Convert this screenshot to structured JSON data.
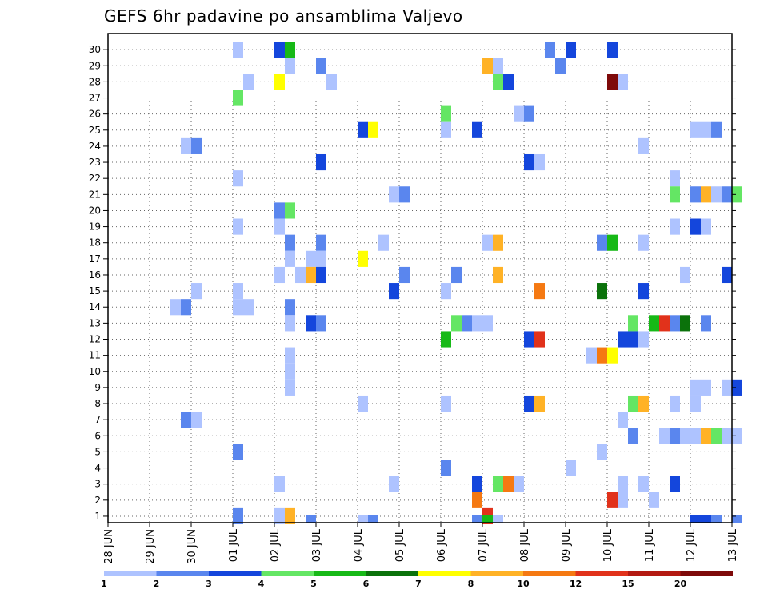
{
  "chart_data": {
    "type": "heatmap",
    "title": "GEFS 6hr padavine po ansamblima Valjevo",
    "x_labels": [
      "28 JUN",
      "29 JUN",
      "30 JUN",
      "01 JUL",
      "02 JUL",
      "03 JUL",
      "04 JUL",
      "05 JUL",
      "06 JUL",
      "07 JUL",
      "08 JUL",
      "09 JUL",
      "10 JUL",
      "11 JUL",
      "12 JUL",
      "13 JUL"
    ],
    "y_labels": [
      "1",
      "2",
      "3",
      "4",
      "5",
      "6",
      "7",
      "8",
      "9",
      "10",
      "11",
      "12",
      "13",
      "14",
      "15",
      "16",
      "17",
      "18",
      "19",
      "20",
      "21",
      "22",
      "23",
      "24",
      "25",
      "26",
      "27",
      "28",
      "29",
      "30"
    ],
    "xlabel": "",
    "ylabel": "",
    "grid": true,
    "step": "6hr",
    "colorbar": {
      "labels": [
        "1",
        "2",
        "3",
        "4",
        "5",
        "6",
        "7",
        "8",
        "10",
        "12",
        "15",
        "20"
      ],
      "colors": [
        "#aec3ff",
        "#5a86ee",
        "#1446dc",
        "#64e664",
        "#17b917",
        "#0b720b",
        "#ffff00",
        "#ffb226",
        "#f57912",
        "#e1321b",
        "#b41a12",
        "#7e0a0a"
      ]
    },
    "cells": [
      [
        3.0,
        30,
        0
      ],
      [
        4.0,
        30,
        2
      ],
      [
        4.25,
        30,
        4
      ],
      [
        10.5,
        30,
        1
      ],
      [
        11.0,
        30,
        2
      ],
      [
        12.0,
        30,
        2
      ],
      [
        4.25,
        29,
        0
      ],
      [
        5.0,
        29,
        1
      ],
      [
        9.0,
        29,
        7
      ],
      [
        9.25,
        29,
        0
      ],
      [
        10.75,
        29,
        1
      ],
      [
        3.25,
        28,
        0
      ],
      [
        4.0,
        28,
        6
      ],
      [
        5.25,
        28,
        0
      ],
      [
        9.25,
        28,
        3
      ],
      [
        9.5,
        28,
        2
      ],
      [
        12.0,
        28,
        11
      ],
      [
        12.25,
        28,
        0
      ],
      [
        3.0,
        27,
        3
      ],
      [
        8.0,
        26,
        3
      ],
      [
        9.75,
        26,
        0
      ],
      [
        10.0,
        26,
        1
      ],
      [
        6.0,
        25,
        2
      ],
      [
        6.25,
        25,
        6
      ],
      [
        8.0,
        25,
        0
      ],
      [
        8.75,
        25,
        2
      ],
      [
        14.0,
        25,
        0
      ],
      [
        14.25,
        25,
        0
      ],
      [
        14.5,
        25,
        1
      ],
      [
        1.75,
        24,
        0
      ],
      [
        2.0,
        24,
        1
      ],
      [
        12.75,
        24,
        0
      ],
      [
        5.0,
        23,
        2
      ],
      [
        10.0,
        23,
        2
      ],
      [
        10.25,
        23,
        0
      ],
      [
        3.0,
        22,
        0
      ],
      [
        13.5,
        22,
        0
      ],
      [
        6.75,
        21,
        0
      ],
      [
        7.0,
        21,
        1
      ],
      [
        13.5,
        21,
        3
      ],
      [
        14.0,
        21,
        1
      ],
      [
        14.25,
        21,
        7
      ],
      [
        14.5,
        21,
        0
      ],
      [
        14.75,
        21,
        1
      ],
      [
        15.0,
        21,
        3
      ],
      [
        4.0,
        20,
        1
      ],
      [
        4.25,
        20,
        3
      ],
      [
        3.0,
        19,
        0
      ],
      [
        4.0,
        19,
        0
      ],
      [
        13.5,
        19,
        0
      ],
      [
        14.0,
        19,
        2
      ],
      [
        14.25,
        19,
        0
      ],
      [
        4.25,
        18,
        1
      ],
      [
        5.0,
        18,
        1
      ],
      [
        6.5,
        18,
        0
      ],
      [
        9.0,
        18,
        0
      ],
      [
        9.25,
        18,
        7
      ],
      [
        11.75,
        18,
        1
      ],
      [
        12.0,
        18,
        4
      ],
      [
        12.75,
        18,
        0
      ],
      [
        4.25,
        17,
        0
      ],
      [
        4.75,
        17,
        0
      ],
      [
        5.0,
        17,
        0
      ],
      [
        6.0,
        17,
        6
      ],
      [
        4.0,
        16,
        0
      ],
      [
        4.5,
        16,
        0
      ],
      [
        4.75,
        16,
        7
      ],
      [
        5.0,
        16,
        2
      ],
      [
        7.0,
        16,
        1
      ],
      [
        8.25,
        16,
        1
      ],
      [
        9.25,
        16,
        7
      ],
      [
        13.75,
        16,
        0
      ],
      [
        14.75,
        16,
        2
      ],
      [
        2.0,
        15,
        0
      ],
      [
        3.0,
        15,
        0
      ],
      [
        6.75,
        15,
        2
      ],
      [
        8.0,
        15,
        0
      ],
      [
        10.25,
        15,
        8
      ],
      [
        11.75,
        15,
        5
      ],
      [
        12.75,
        15,
        2
      ],
      [
        1.5,
        14,
        0
      ],
      [
        1.75,
        14,
        1
      ],
      [
        3.0,
        14,
        0
      ],
      [
        3.25,
        14,
        0
      ],
      [
        4.25,
        14,
        1
      ],
      [
        4.25,
        13,
        0
      ],
      [
        4.75,
        13,
        2
      ],
      [
        5.0,
        13,
        1
      ],
      [
        8.25,
        13,
        3
      ],
      [
        8.5,
        13,
        1
      ],
      [
        8.75,
        13,
        0
      ],
      [
        9.0,
        13,
        0
      ],
      [
        12.5,
        13,
        3
      ],
      [
        13.0,
        13,
        4
      ],
      [
        13.25,
        13,
        9
      ],
      [
        13.5,
        13,
        1
      ],
      [
        13.75,
        13,
        5
      ],
      [
        14.25,
        13,
        1
      ],
      [
        8.0,
        12,
        4
      ],
      [
        10.0,
        12,
        2
      ],
      [
        10.25,
        12,
        9
      ],
      [
        12.25,
        12,
        2
      ],
      [
        12.5,
        12,
        2
      ],
      [
        12.75,
        12,
        0
      ],
      [
        4.25,
        11,
        0
      ],
      [
        11.5,
        11,
        0
      ],
      [
        11.75,
        11,
        8
      ],
      [
        12.0,
        11,
        6
      ],
      [
        4.25,
        10,
        0
      ],
      [
        4.25,
        9,
        0
      ],
      [
        14.0,
        9,
        0
      ],
      [
        14.25,
        9,
        0
      ],
      [
        14.75,
        9,
        0
      ],
      [
        15.0,
        9,
        2
      ],
      [
        6.0,
        8,
        0
      ],
      [
        8.0,
        8,
        0
      ],
      [
        10.0,
        8,
        2
      ],
      [
        10.25,
        8,
        7
      ],
      [
        12.5,
        8,
        3
      ],
      [
        12.75,
        8,
        7
      ],
      [
        13.5,
        8,
        0
      ],
      [
        14.0,
        8,
        0
      ],
      [
        1.75,
        7,
        1
      ],
      [
        2.0,
        7,
        0
      ],
      [
        12.25,
        7,
        0
      ],
      [
        12.5,
        6,
        1
      ],
      [
        13.25,
        6,
        0
      ],
      [
        13.5,
        6,
        1
      ],
      [
        13.75,
        6,
        0
      ],
      [
        14.0,
        6,
        0
      ],
      [
        14.25,
        6,
        7
      ],
      [
        14.5,
        6,
        3
      ],
      [
        14.75,
        6,
        0
      ],
      [
        15.0,
        6,
        0
      ],
      [
        3.0,
        5,
        1
      ],
      [
        11.75,
        5,
        0
      ],
      [
        8.0,
        4,
        1
      ],
      [
        11.0,
        4,
        0
      ],
      [
        4.0,
        3,
        0
      ],
      [
        6.75,
        3,
        0
      ],
      [
        8.75,
        3,
        2
      ],
      [
        9.25,
        3,
        3
      ],
      [
        9.5,
        3,
        8
      ],
      [
        9.75,
        3,
        0
      ],
      [
        12.25,
        3,
        0
      ],
      [
        12.75,
        3,
        0
      ],
      [
        13.5,
        3,
        2
      ],
      [
        8.75,
        2,
        8
      ],
      [
        12.0,
        2,
        9
      ],
      [
        12.25,
        2,
        0
      ],
      [
        13.0,
        2,
        0
      ],
      [
        3.0,
        1,
        1
      ],
      [
        4.0,
        1,
        0
      ],
      [
        4.25,
        1,
        7
      ],
      [
        9.0,
        1,
        9
      ]
    ],
    "bottom_strip": [
      [
        4.75,
        1
      ],
      [
        6.0,
        0
      ],
      [
        6.25,
        1
      ],
      [
        8.75,
        1
      ],
      [
        9.0,
        4
      ],
      [
        9.25,
        0
      ],
      [
        14.0,
        2
      ],
      [
        14.25,
        2
      ],
      [
        14.5,
        1
      ],
      [
        15.0,
        1
      ]
    ]
  }
}
